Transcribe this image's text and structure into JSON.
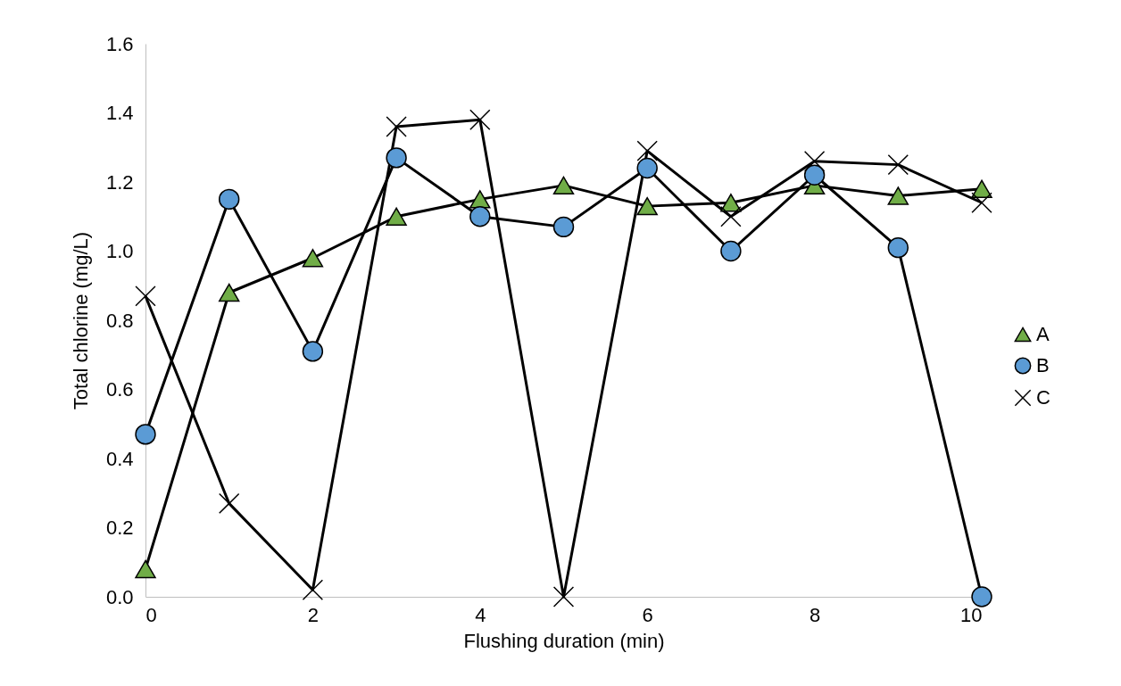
{
  "chart_data": {
    "type": "line",
    "xlabel": "Flushing duration (min)",
    "ylabel": "Total chlorine (mg/L)",
    "x": [
      0,
      1,
      2,
      3,
      4,
      5,
      6,
      7,
      8,
      9,
      10
    ],
    "series": [
      {
        "name": "A",
        "color": "#70ad47",
        "marker": "triangle",
        "values": [
          0.08,
          0.88,
          0.98,
          1.1,
          1.15,
          1.19,
          1.13,
          1.14,
          1.19,
          1.16,
          1.18
        ]
      },
      {
        "name": "B",
        "color": "#5b9bd5",
        "marker": "circle",
        "values": [
          0.47,
          1.15,
          0.71,
          1.27,
          1.1,
          1.07,
          1.24,
          1.0,
          1.22,
          1.01,
          0
        ]
      },
      {
        "name": "C",
        "color": "#000000",
        "marker": "cross",
        "values": [
          0.87,
          0.27,
          0.02,
          1.36,
          1.38,
          0,
          1.29,
          1.1,
          1.26,
          1.25,
          1.14
        ]
      }
    ],
    "xlim": [
      0,
      10
    ],
    "xticks": [
      0,
      2,
      4,
      6,
      8,
      10
    ],
    "ylim": [
      0,
      1.6
    ],
    "yticks": [
      {
        "value": 0,
        "label": "0.0"
      },
      {
        "value": 0.2,
        "label": "0.2"
      },
      {
        "value": 0.4,
        "label": "0.4"
      },
      {
        "value": 0.6,
        "label": "0.6"
      },
      {
        "value": 0.8,
        "label": "0.8"
      },
      {
        "value": 1,
        "label": "1.0"
      },
      {
        "value": 1.2,
        "label": "1.2"
      },
      {
        "value": 1.4,
        "label": "1.4"
      },
      {
        "value": 1.6,
        "label": "1.6"
      }
    ],
    "grid": false,
    "legend": "right"
  }
}
